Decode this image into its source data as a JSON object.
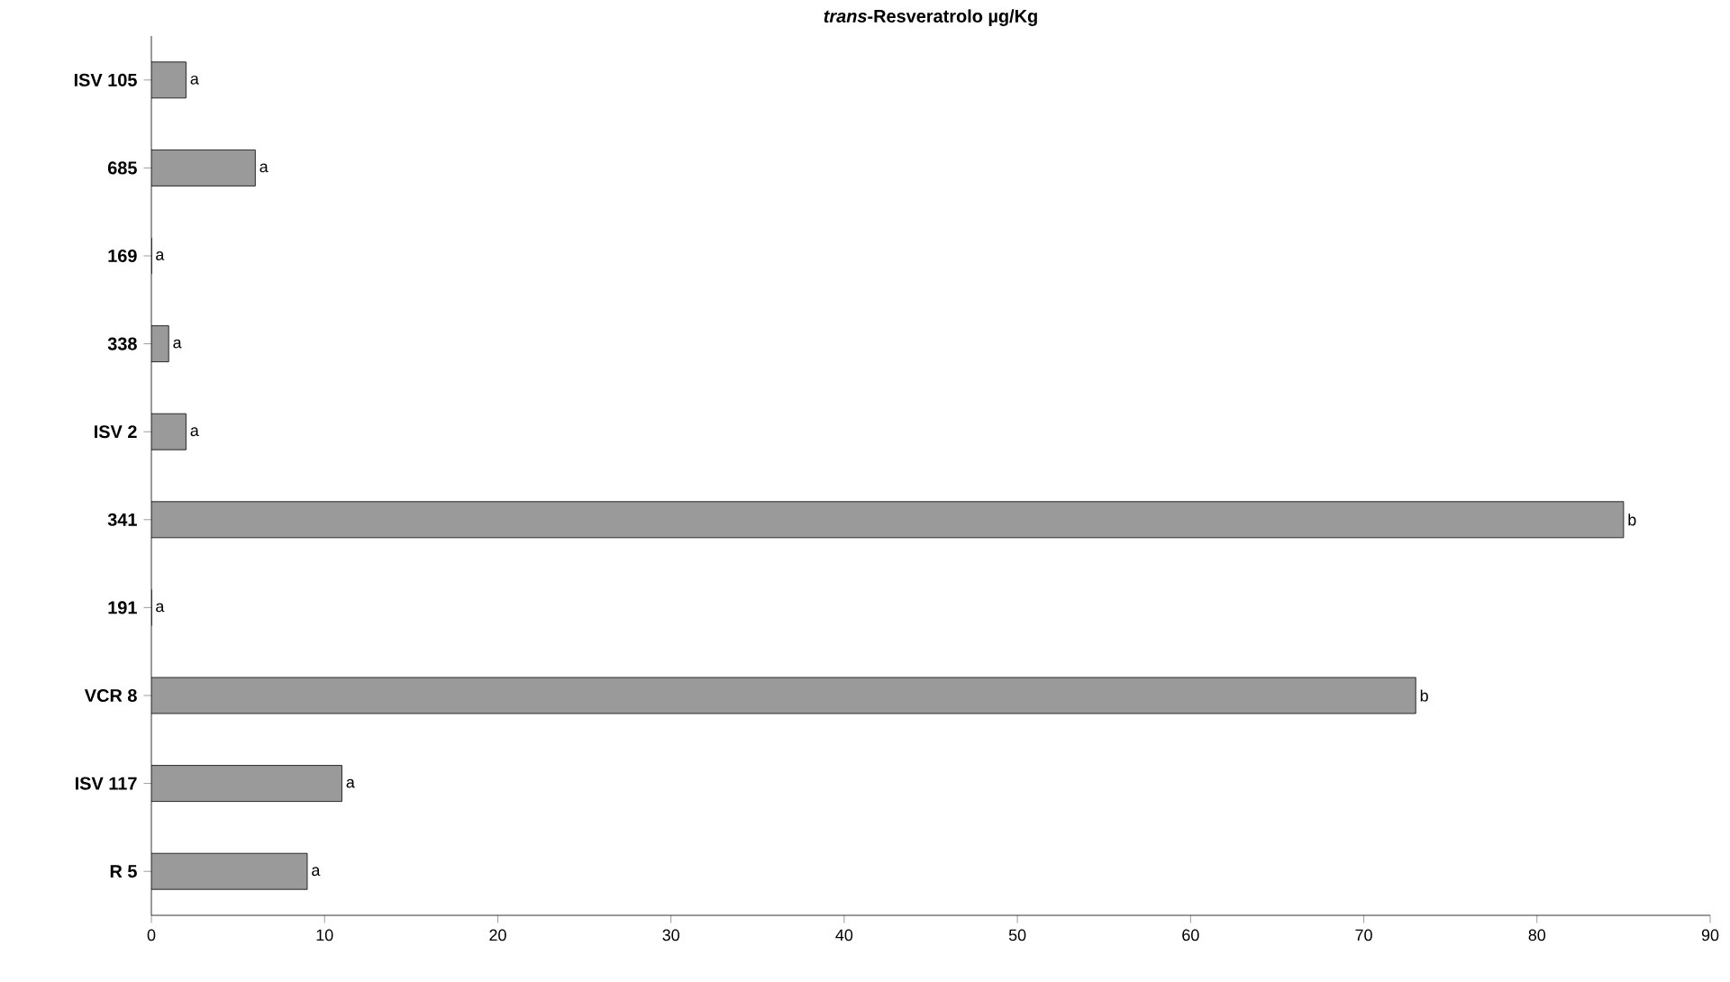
{
  "chart_data": {
    "type": "bar",
    "orientation": "horizontal",
    "title": "*trans*-Resveratrolo µg/Kg",
    "categories": [
      "ISV 105",
      "685",
      "169",
      "338",
      "ISV 2",
      "341",
      "191",
      "VCR 8",
      "ISV 117",
      "R 5"
    ],
    "values": [
      2,
      6,
      0,
      1,
      2,
      85,
      0,
      73,
      11,
      9
    ],
    "value_labels": [
      "a",
      "a",
      "a",
      "a",
      "a",
      "b",
      "a",
      "b",
      "a",
      "a"
    ],
    "color": "#9a9a9a",
    "xlim": [
      0,
      90
    ],
    "xticks": [
      0,
      10,
      20,
      30,
      40,
      50,
      60,
      70,
      80,
      90
    ],
    "grid": false
  }
}
